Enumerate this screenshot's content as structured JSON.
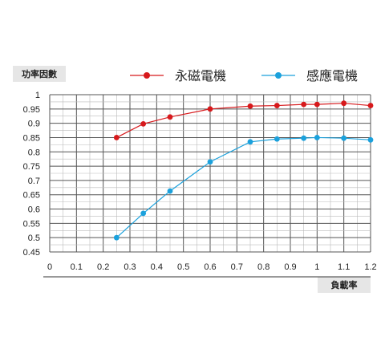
{
  "chart_data": {
    "type": "line",
    "xlabel": "負載率",
    "ylabel": "功率因數",
    "xlim": [
      0,
      1.2
    ],
    "ylim": [
      0.45,
      1.0
    ],
    "x_ticks": [
      "0",
      "0.1",
      "0.2",
      "0.3",
      "0.4",
      "0.5",
      "0.6",
      "0.7",
      "0.8",
      "0.9",
      "1",
      "1.1",
      "1.2"
    ],
    "y_ticks": [
      "0.45",
      "0.5",
      "0.55",
      "0.6",
      "0.65",
      "0.7",
      "0.75",
      "0.8",
      "0.85",
      "0.9",
      "0.95",
      "1"
    ],
    "grid": true,
    "legend_position": "top",
    "series": [
      {
        "name": "永磁電機",
        "color": "#d7191c",
        "x": [
          0.25,
          0.35,
          0.45,
          0.6,
          0.75,
          0.85,
          0.95,
          1.0,
          1.1,
          1.2
        ],
        "y": [
          0.85,
          0.898,
          0.922,
          0.95,
          0.96,
          0.962,
          0.966,
          0.966,
          0.97,
          0.962
        ]
      },
      {
        "name": "感應電機",
        "color": "#1ba1dc",
        "x": [
          0.25,
          0.35,
          0.45,
          0.6,
          0.75,
          0.85,
          0.95,
          1.0,
          1.1,
          1.2
        ],
        "y": [
          0.5,
          0.585,
          0.663,
          0.765,
          0.835,
          0.845,
          0.848,
          0.85,
          0.848,
          0.842
        ]
      }
    ]
  }
}
